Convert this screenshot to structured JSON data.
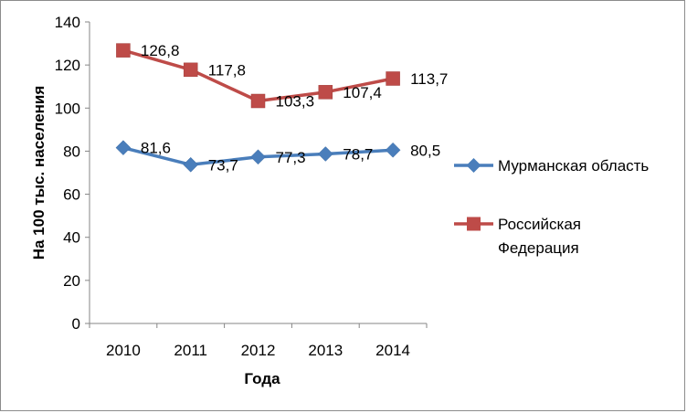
{
  "chart_data": {
    "type": "line",
    "categories": [
      "2010",
      "2011",
      "2012",
      "2013",
      "2014"
    ],
    "series": [
      {
        "name": "Мурманская область",
        "values": [
          81.6,
          73.7,
          77.3,
          78.7,
          80.5
        ],
        "labels": [
          "81,6",
          "73,7",
          "77,3",
          "78,7",
          "80,5"
        ],
        "color": "#4a7ebb",
        "marker": "diamond"
      },
      {
        "name": "Российская Федерация",
        "name_lines": [
          "Российская",
          "Федерация"
        ],
        "values": [
          126.8,
          117.8,
          103.3,
          107.4,
          113.7
        ],
        "labels": [
          "126,8",
          "117,8",
          "103,3",
          "107,4",
          "113,7"
        ],
        "color": "#be4b48",
        "marker": "square"
      }
    ],
    "xlabel": "Года",
    "ylabel": "На 100 тыс. населения",
    "ylim": [
      0,
      140
    ],
    "yticks": [
      0,
      20,
      40,
      60,
      80,
      100,
      120,
      140
    ],
    "grid": false,
    "legend_position": "right"
  }
}
